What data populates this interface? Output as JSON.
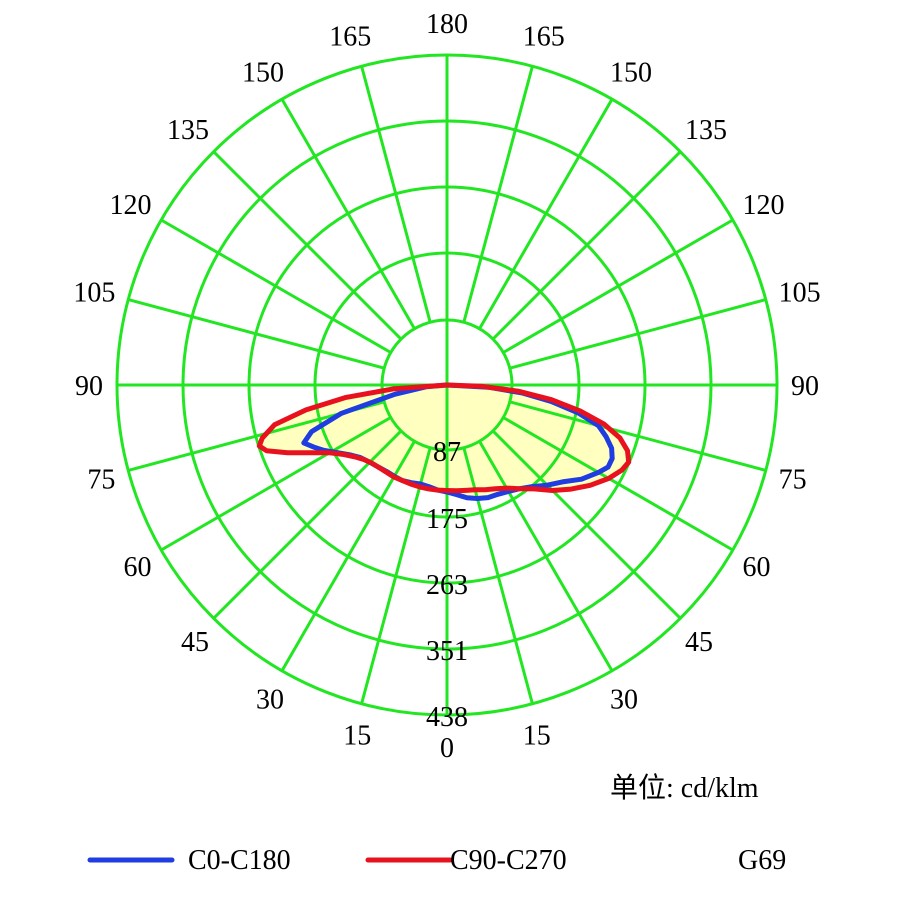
{
  "chart_data": {
    "type": "polar",
    "radial_ticks": [
      "87",
      "175",
      "263",
      "351",
      "438"
    ],
    "radial_max": 438,
    "angle_labels_left": [
      "0",
      "15",
      "30",
      "45",
      "60",
      "75",
      "90",
      "105",
      "120",
      "135",
      "150",
      "165",
      "180"
    ],
    "angle_labels_right": [
      "15",
      "30",
      "45",
      "60",
      "75",
      "90",
      "105",
      "120",
      "135",
      "150",
      "165"
    ],
    "unit_label": "单位: cd/klm",
    "colors": {
      "grid": "#22e622",
      "fill": "#ffffc0"
    },
    "series": [
      {
        "name": "C0-C180",
        "color": "#1f3de0",
        "points": [
          [
            -90,
            0
          ],
          [
            -85,
            28
          ],
          [
            -80,
            70
          ],
          [
            -75,
            145
          ],
          [
            -71,
            190
          ],
          [
            -68,
            205
          ],
          [
            -65,
            195
          ],
          [
            -62,
            185
          ],
          [
            -58,
            170
          ],
          [
            -54,
            158
          ],
          [
            -50,
            150
          ],
          [
            -45,
            145
          ],
          [
            -40,
            142
          ],
          [
            -35,
            140
          ],
          [
            -30,
            140
          ],
          [
            -25,
            140
          ],
          [
            -20,
            138
          ],
          [
            -15,
            136
          ],
          [
            -10,
            137
          ],
          [
            -5,
            140
          ],
          [
            0,
            142
          ],
          [
            5,
            146
          ],
          [
            10,
            152
          ],
          [
            15,
            156
          ],
          [
            20,
            159
          ],
          [
            25,
            160
          ],
          [
            30,
            163
          ],
          [
            35,
            168
          ],
          [
            40,
            176
          ],
          [
            45,
            188
          ],
          [
            50,
            200
          ],
          [
            55,
            218
          ],
          [
            60,
            232
          ],
          [
            63,
            240
          ],
          [
            66,
            240
          ],
          [
            69,
            234
          ],
          [
            72,
            222
          ],
          [
            75,
            208
          ],
          [
            78,
            178
          ],
          [
            81,
            140
          ],
          [
            84,
            100
          ],
          [
            87,
            55
          ],
          [
            90,
            0
          ]
        ]
      },
      {
        "name": "C90-C270",
        "color": "#e8121e",
        "points": [
          [
            -90,
            0
          ],
          [
            -86,
            70
          ],
          [
            -83,
            135
          ],
          [
            -80,
            190
          ],
          [
            -77,
            235
          ],
          [
            -74,
            255
          ],
          [
            -72,
            262
          ],
          [
            -70,
            255
          ],
          [
            -67,
            230
          ],
          [
            -64,
            205
          ],
          [
            -60,
            180
          ],
          [
            -56,
            165
          ],
          [
            -52,
            155
          ],
          [
            -48,
            148
          ],
          [
            -44,
            144
          ],
          [
            -40,
            142
          ],
          [
            -35,
            141
          ],
          [
            -30,
            141
          ],
          [
            -25,
            140
          ],
          [
            -20,
            140
          ],
          [
            -15,
            140
          ],
          [
            -10,
            140
          ],
          [
            -5,
            140
          ],
          [
            0,
            140
          ],
          [
            5,
            141
          ],
          [
            10,
            142
          ],
          [
            15,
            144
          ],
          [
            20,
            148
          ],
          [
            25,
            152
          ],
          [
            30,
            158
          ],
          [
            35,
            168
          ],
          [
            40,
            180
          ],
          [
            45,
            198
          ],
          [
            50,
            215
          ],
          [
            55,
            232
          ],
          [
            60,
            248
          ],
          [
            64,
            258
          ],
          [
            67,
            262
          ],
          [
            70,
            255
          ],
          [
            73,
            240
          ],
          [
            76,
            215
          ],
          [
            79,
            180
          ],
          [
            82,
            140
          ],
          [
            85,
            95
          ],
          [
            88,
            45
          ],
          [
            90,
            0
          ]
        ]
      }
    ]
  },
  "legend": {
    "series1": "C0-C180",
    "series2": "C90-C270",
    "code": "G69"
  }
}
